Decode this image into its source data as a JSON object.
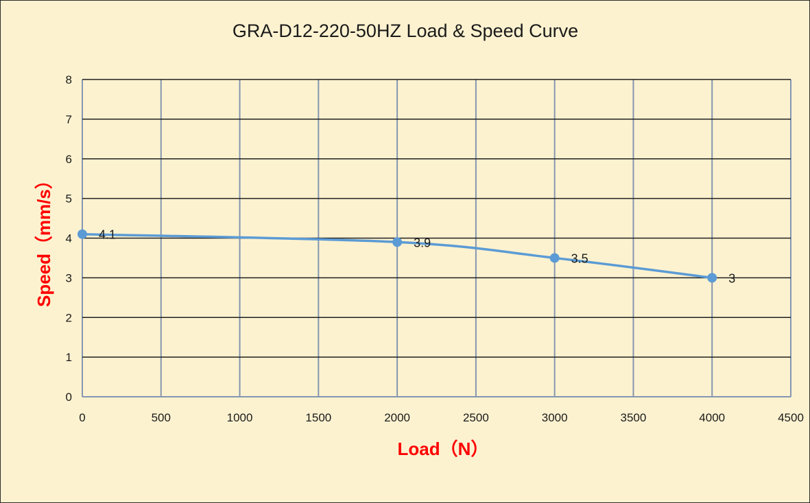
{
  "chart_data": {
    "type": "line",
    "title": "GRA-D12-220-50HZ Load & Speed Curve",
    "xlabel": "Load（N）",
    "ylabel": "Speed（mm/s）",
    "xlim": [
      0,
      4500
    ],
    "ylim": [
      0,
      8
    ],
    "x_ticks": [
      "0",
      "500",
      "1000",
      "1500",
      "2000",
      "2500",
      "3000",
      "3500",
      "4000",
      "4500"
    ],
    "y_ticks": [
      "0",
      "1",
      "2",
      "3",
      "4",
      "5",
      "6",
      "7",
      "8"
    ],
    "grid": true,
    "legend": "none",
    "series": [
      {
        "color": "#5b9bd5",
        "points": [
          {
            "x": 0,
            "y": 4.1,
            "label": "4.1"
          },
          {
            "x": 2000,
            "y": 3.9,
            "label": "3.9"
          },
          {
            "x": 3000,
            "y": 3.5,
            "label": "3.5"
          },
          {
            "x": 4000,
            "y": 3,
            "label": "3"
          }
        ]
      }
    ],
    "colors": {
      "background": "#fdf2d0",
      "axis_title": "#ff0000",
      "grid_horizontal": "#1f1f1f",
      "grid_vertical": "#8496b0"
    }
  }
}
